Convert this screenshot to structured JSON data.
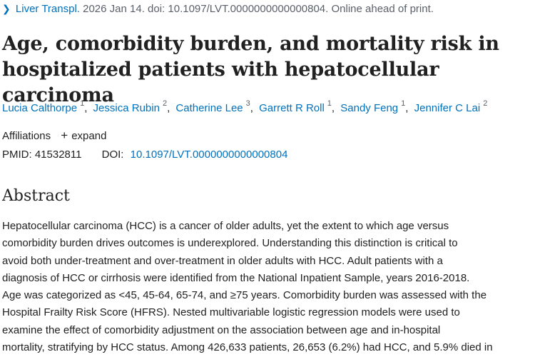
{
  "citation": {
    "journal": "Liver Transpl.",
    "details": " 2026 Jan 14. doi: 10.1097/LVT.0000000000000804. Online ahead of print."
  },
  "title": {
    "line1": "Age, comorbidity burden, and mortality risk in",
    "line2": "hospitalized patients with hepatocellular carcinoma"
  },
  "authors": [
    {
      "name": "Lucia Calthorpe",
      "aff": "1"
    },
    {
      "name": "Jessica Rubin",
      "aff": "2"
    },
    {
      "name": "Catherine Lee",
      "aff": "3"
    },
    {
      "name": "Garrett R Roll",
      "aff": "1"
    },
    {
      "name": "Sandy Feng",
      "aff": "1"
    },
    {
      "name": "Jennifer C Lai",
      "aff": "2"
    }
  ],
  "affiliations": {
    "label": "Affiliations",
    "expand_label": "expand"
  },
  "identifiers": {
    "pmid_label": "PMID:",
    "pmid": "41532811",
    "doi_label": "DOI:",
    "doi": "10.1097/LVT.0000000000000804"
  },
  "abstract": {
    "heading": "Abstract",
    "lines": [
      "Hepatocellular carcinoma (HCC) is a cancer of older adults, yet the extent to which age versus",
      "comorbidity burden drives outcomes is underexplored. Understanding this distinction is critical to",
      "avoid both under-treatment and over-treatment in older adults with HCC. Adult patients with a",
      "diagnosis of HCC or cirrhosis were identified from the National Inpatient Sample, years 2016-2018.",
      "Age was categorized as <45, 45-64, 65-74, and ≥75 years. Comorbidity burden was assessed with the",
      "Hospital Frailty Risk Score (HFRS). Nested multivariable logistic regression models were used to",
      "examine the effect of comorbidity adjustment on the association between age and in-hospital",
      "mortality, stratifying by HCC status. Among 426,633 patients, 26,653 (6.2%) had HCC, and 5.9% died in"
    ]
  },
  "colors": {
    "link": "#0071bc",
    "text": "#212121",
    "muted": "#5b616b"
  }
}
